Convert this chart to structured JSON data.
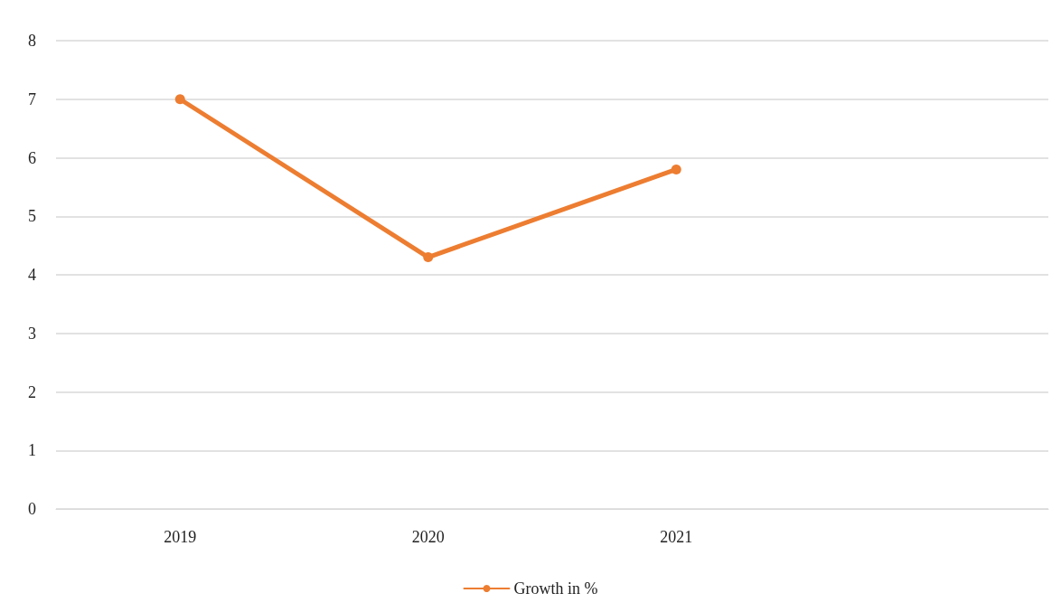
{
  "chart_data": {
    "type": "line",
    "categories": [
      "2019",
      "2020",
      "2021",
      null
    ],
    "series": [
      {
        "name": "Growth in %",
        "color": "#ed7d31",
        "values": [
          7,
          4.3,
          5.8,
          null
        ]
      }
    ],
    "ylim": [
      0,
      8
    ],
    "yticks": [
      0,
      1,
      2,
      3,
      4,
      5,
      6,
      7,
      8
    ],
    "grid": "y",
    "legend": "bottom",
    "marker": "circle",
    "line_style": "solid"
  }
}
